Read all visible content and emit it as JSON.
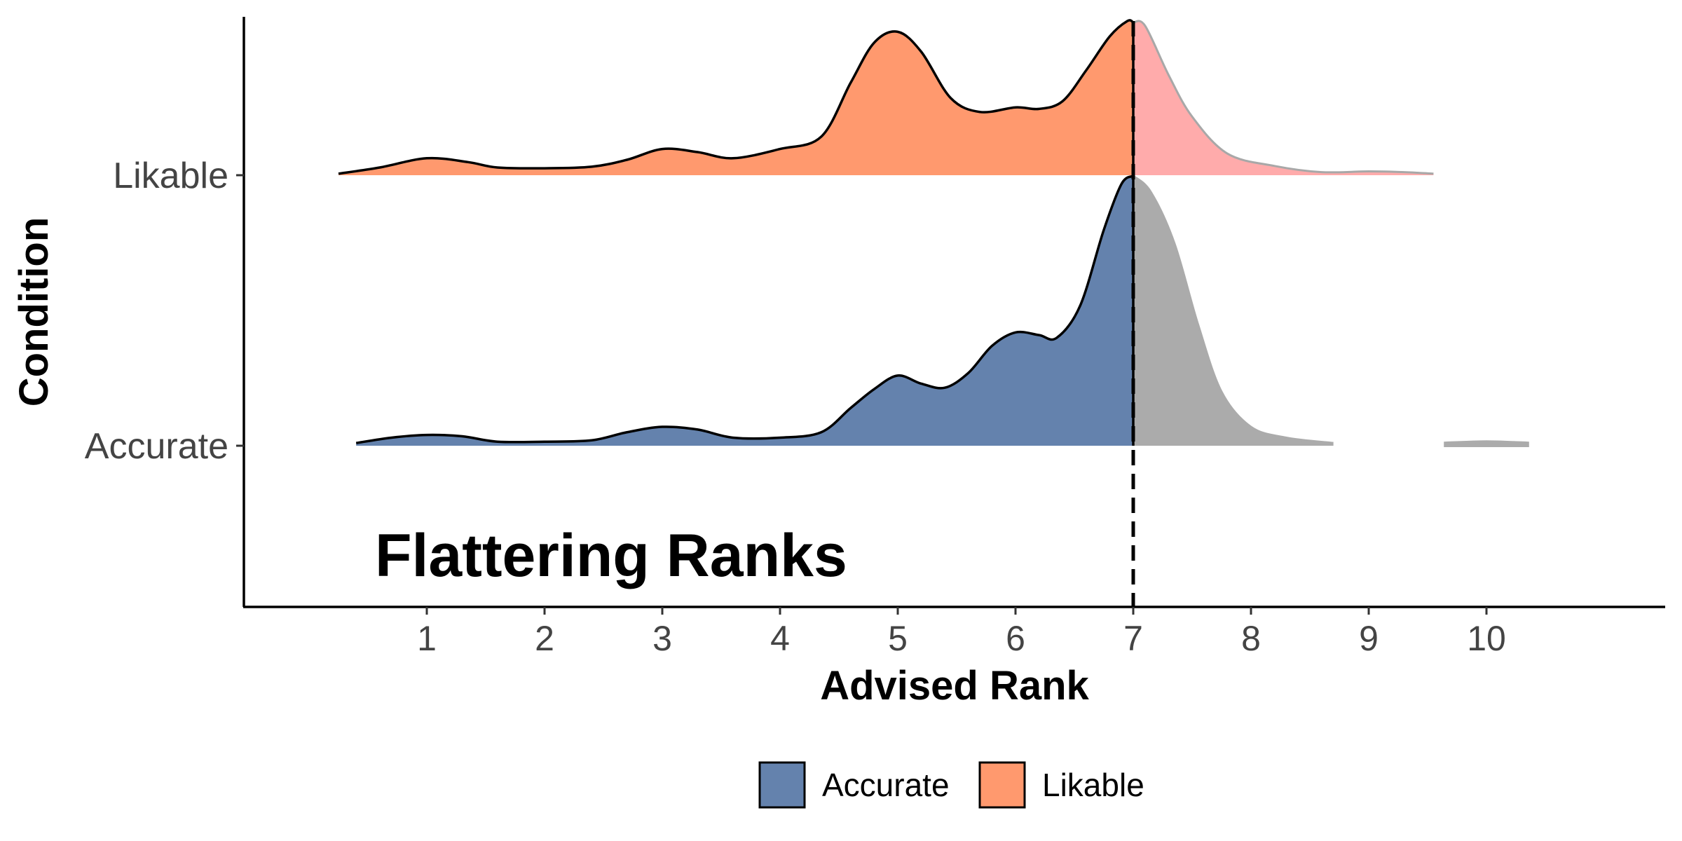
{
  "chart_data": {
    "type": "ridgeline-density",
    "title": "",
    "xlabel": "Advised Rank",
    "ylabel": "Condition",
    "annotation": "Flattering Ranks",
    "xlim": [
      -0.5,
      12
    ],
    "x_ticks": [
      1,
      2,
      3,
      4,
      5,
      6,
      7,
      8,
      9,
      10
    ],
    "reference_line": {
      "x": 7,
      "style": "dashed"
    },
    "categories": [
      "Accurate",
      "Likable"
    ],
    "legend": {
      "placement": "bottom",
      "entries": [
        {
          "label": "Accurate",
          "color": "#6482AD"
        },
        {
          "label": "Likable",
          "color": "#FF996E"
        }
      ]
    },
    "series": [
      {
        "category": "Accurate",
        "fill_below_7": "#6482AD",
        "fill_above_7": "#ABABAB",
        "density": [
          [
            0.4,
            0.01
          ],
          [
            0.7,
            0.03
          ],
          [
            1.0,
            0.04
          ],
          [
            1.3,
            0.035
          ],
          [
            1.6,
            0.015
          ],
          [
            2.0,
            0.015
          ],
          [
            2.4,
            0.02
          ],
          [
            2.7,
            0.05
          ],
          [
            3.0,
            0.07
          ],
          [
            3.3,
            0.06
          ],
          [
            3.6,
            0.03
          ],
          [
            4.0,
            0.03
          ],
          [
            4.35,
            0.05
          ],
          [
            4.6,
            0.14
          ],
          [
            4.8,
            0.21
          ],
          [
            5.0,
            0.26
          ],
          [
            5.2,
            0.23
          ],
          [
            5.4,
            0.215
          ],
          [
            5.6,
            0.27
          ],
          [
            5.8,
            0.37
          ],
          [
            6.0,
            0.42
          ],
          [
            6.2,
            0.41
          ],
          [
            6.35,
            0.4
          ],
          [
            6.55,
            0.52
          ],
          [
            6.75,
            0.8
          ],
          [
            6.9,
            0.97
          ],
          [
            7.0,
            1.0
          ],
          [
            7.15,
            0.94
          ],
          [
            7.35,
            0.75
          ],
          [
            7.55,
            0.45
          ],
          [
            7.75,
            0.2
          ],
          [
            8.0,
            0.07
          ],
          [
            8.3,
            0.03
          ],
          [
            8.7,
            0.01
          ]
        ],
        "density_extra": [
          [
            9.65,
            0.01
          ],
          [
            10.0,
            0.015
          ],
          [
            10.35,
            0.01
          ]
        ]
      },
      {
        "category": "Likable",
        "fill_below_7": "#FF996E",
        "fill_above_7": "#FFABAB",
        "density": [
          [
            0.25,
            0.01
          ],
          [
            0.6,
            0.05
          ],
          [
            1.0,
            0.11
          ],
          [
            1.35,
            0.085
          ],
          [
            1.6,
            0.05
          ],
          [
            2.0,
            0.045
          ],
          [
            2.4,
            0.055
          ],
          [
            2.7,
            0.1
          ],
          [
            3.0,
            0.17
          ],
          [
            3.3,
            0.15
          ],
          [
            3.6,
            0.11
          ],
          [
            4.0,
            0.17
          ],
          [
            4.35,
            0.25
          ],
          [
            4.6,
            0.6
          ],
          [
            4.8,
            0.86
          ],
          [
            5.0,
            0.93
          ],
          [
            5.2,
            0.8
          ],
          [
            5.45,
            0.5
          ],
          [
            5.7,
            0.41
          ],
          [
            6.0,
            0.44
          ],
          [
            6.2,
            0.43
          ],
          [
            6.4,
            0.48
          ],
          [
            6.6,
            0.68
          ],
          [
            6.8,
            0.9
          ],
          [
            6.95,
            1.0
          ],
          [
            7.1,
            0.97
          ],
          [
            7.3,
            0.65
          ],
          [
            7.5,
            0.38
          ],
          [
            7.8,
            0.14
          ],
          [
            8.2,
            0.06
          ],
          [
            8.6,
            0.02
          ],
          [
            9.0,
            0.025
          ],
          [
            9.3,
            0.02
          ],
          [
            9.55,
            0.01
          ]
        ]
      }
    ]
  }
}
